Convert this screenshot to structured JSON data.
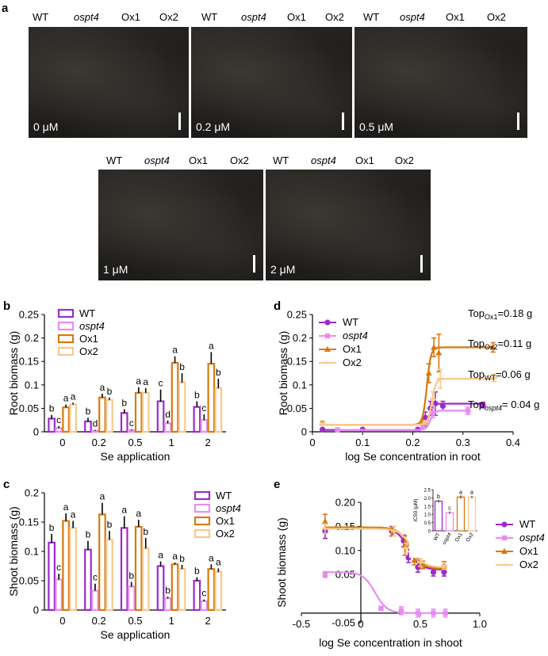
{
  "panel_letters": {
    "a": "a",
    "b": "b",
    "c": "c",
    "d": "d",
    "e": "e"
  },
  "photos": {
    "genotypes": [
      "WT",
      "ospt4",
      "Ox1",
      "Ox2"
    ],
    "panels": [
      {
        "concentration": "0 μM"
      },
      {
        "concentration": "0.2 μM"
      },
      {
        "concentration": "0.5 μM"
      },
      {
        "concentration": "1 μM"
      },
      {
        "concentration": "2 μM"
      }
    ]
  },
  "chart_data": [
    {
      "id": "b",
      "type": "bar",
      "ylabel": "Root biomass  (g)",
      "xlabel": "Se application",
      "categories": [
        "0",
        "0.2",
        "0.5",
        "1",
        "2"
      ],
      "ylim": [
        0,
        0.25
      ],
      "yticks": [
        "0",
        "0.05",
        "0.1",
        "0.15",
        "0.2",
        "0.25"
      ],
      "legend": [
        "WT",
        "ospt4",
        "Ox1",
        "Ox2"
      ],
      "series": [
        {
          "name": "WT",
          "color": "#9c2bc9",
          "values": [
            0.028,
            0.022,
            0.04,
            0.065,
            0.053
          ],
          "err": [
            0.008,
            0.008,
            0.008,
            0.025,
            0.012
          ],
          "letters": [
            "b",
            "b",
            "b",
            "c",
            "b"
          ]
        },
        {
          "name": "ospt4",
          "color": "#e88cf2",
          "values": [
            0.008,
            0.002,
            0.003,
            0.018,
            0.025
          ],
          "err": [
            0.004,
            0.002,
            0.002,
            0.006,
            0.012
          ],
          "letters": [
            "c",
            "d",
            "c",
            "d",
            "c"
          ]
        },
        {
          "name": "Ox1",
          "color": "#d9780f",
          "values": [
            0.052,
            0.073,
            0.083,
            0.147,
            0.145
          ],
          "err": [
            0.006,
            0.008,
            0.012,
            0.014,
            0.025
          ],
          "letters": [
            "a",
            "a",
            "a",
            "a",
            "a"
          ]
        },
        {
          "name": "Ox2",
          "color": "#f6c98c",
          "values": [
            0.058,
            0.068,
            0.083,
            0.105,
            0.093
          ],
          "err": [
            0.004,
            0.005,
            0.01,
            0.02,
            0.02
          ],
          "letters": [
            "a",
            "b",
            "a",
            "b",
            "b"
          ]
        }
      ]
    },
    {
      "id": "c",
      "type": "bar",
      "ylabel": "Shoot biomass  (g)",
      "xlabel": "Se application",
      "categories": [
        "0",
        "0.2",
        "0.5",
        "1",
        "2"
      ],
      "ylim": [
        0,
        0.2
      ],
      "yticks": [
        "0",
        "0.05",
        "0.1",
        "0.15",
        "0.2"
      ],
      "legend": [
        "WT",
        "ospt4",
        "Ox1",
        "Ox2"
      ],
      "series": [
        {
          "name": "WT",
          "color": "#9c2bc9",
          "values": [
            0.115,
            0.103,
            0.14,
            0.075,
            0.05
          ],
          "err": [
            0.015,
            0.015,
            0.02,
            0.008,
            0.006
          ],
          "letters": [
            "b",
            "b",
            "a",
            "a",
            "b"
          ]
        },
        {
          "name": "ospt4",
          "color": "#e88cf2",
          "values": [
            0.052,
            0.033,
            0.04,
            0.02,
            0.015
          ],
          "err": [
            0.01,
            0.012,
            0.008,
            0.003,
            0.003
          ],
          "letters": [
            "c",
            "c",
            "b",
            "b",
            "c"
          ]
        },
        {
          "name": "Ox1",
          "color": "#d9780f",
          "values": [
            0.152,
            0.163,
            0.142,
            0.078,
            0.07
          ],
          "err": [
            0.013,
            0.02,
            0.012,
            0.003,
            0.008
          ],
          "letters": [
            "a",
            "a",
            "a",
            "a",
            "a"
          ]
        },
        {
          "name": "Ox2",
          "color": "#f6c98c",
          "values": [
            0.14,
            0.12,
            0.105,
            0.07,
            0.065
          ],
          "err": [
            0.012,
            0.015,
            0.018,
            0.007,
            0.006
          ],
          "letters": [
            "a",
            "b",
            "b",
            "b",
            "a"
          ]
        }
      ]
    },
    {
      "id": "d",
      "type": "scatter",
      "ylabel": "Root biomass  (g)",
      "xlabel": "log Se concentration in root",
      "xlim": [
        0,
        0.4
      ],
      "ylim": [
        0,
        0.25
      ],
      "xticks": [
        "0",
        "0.1",
        "0.2",
        "0.3",
        "0.4"
      ],
      "yticks": [
        "0",
        "0.05",
        "0.1",
        "0.15",
        "0.2",
        "0.25"
      ],
      "legend": [
        "WT",
        "ospt4",
        "Ox1",
        "Ox2"
      ],
      "annotations": [
        {
          "pre": "Top",
          "sub": "Ox1",
          "post": "=0.18 g"
        },
        {
          "pre": "Top",
          "sub": "Ox2",
          "post": "=0.11 g"
        },
        {
          "pre": "Top",
          "sub": "WT",
          "post": "=0.06 g"
        },
        {
          "pre": "Top",
          "sub": "ospt4",
          "post": "= 0.04 g"
        }
      ],
      "series": [
        {
          "name": "WT",
          "color": "#9c2bc9",
          "marker": "circle",
          "bottom": 0.004,
          "top": 0.06,
          "mid": 0.232,
          "x": [
            0.02,
            0.1,
            0.21,
            0.225,
            0.235,
            0.245,
            0.26,
            0.34
          ],
          "y": [
            0.005,
            0.005,
            0.005,
            0.03,
            0.05,
            0.06,
            0.055,
            0.057
          ],
          "err": [
            0.002,
            0.002,
            0.002,
            0.012,
            0.015,
            0.025,
            0.01,
            0.006
          ]
        },
        {
          "name": "ospt4",
          "color": "#e88cf2",
          "marker": "square",
          "bottom": 0.004,
          "top": 0.045,
          "mid": 0.235,
          "x": [
            0.05,
            0.22,
            0.24,
            0.31
          ],
          "y": [
            0.004,
            0.01,
            0.04,
            0.045
          ],
          "err": [
            0.002,
            0.004,
            0.01,
            0.008
          ]
        },
        {
          "name": "Ox1",
          "color": "#d9780f",
          "marker": "triangle",
          "bottom": 0.015,
          "top": 0.18,
          "mid": 0.228,
          "x": [
            0.02,
            0.22,
            0.232,
            0.242,
            0.252,
            0.36
          ],
          "y": [
            0.018,
            0.02,
            0.125,
            0.18,
            0.168,
            0.18
          ],
          "err": [
            0.004,
            0.005,
            0.02,
            0.02,
            0.04,
            0.01
          ]
        },
        {
          "name": "Ox2",
          "color": "#f6c98c",
          "marker": "line",
          "bottom": 0.015,
          "top": 0.113,
          "mid": 0.238,
          "x": [
            0.02,
            0.225,
            0.24,
            0.255,
            0.362
          ],
          "y": [
            0.017,
            0.02,
            0.07,
            0.113,
            0.115
          ],
          "err": [
            0.003,
            0.004,
            0.015,
            0.02,
            0.008
          ]
        }
      ]
    },
    {
      "id": "e",
      "type": "scatter",
      "ylabel": "Shoot biomass  (g)",
      "xlabel": "log Se concentration in shoot",
      "xlim": [
        -0.5,
        1.0
      ],
      "ylim": [
        -0.05,
        0.2
      ],
      "xticks": [
        "-0.5",
        "0",
        "0.5",
        "1.0"
      ],
      "ytick_labels": [
        "-0.05",
        "0.05",
        "0.10",
        "0.15",
        "0.20"
      ],
      "ytick_values": [
        -0.05,
        0.05,
        0.1,
        0.15,
        0.2
      ],
      "legend": [
        "WT",
        "ospt4",
        "Ox1",
        "Ox2"
      ],
      "series": [
        {
          "name": "WT",
          "color": "#9c2bc9",
          "marker": "circle",
          "top": 0.147,
          "bottom": 0.06,
          "ic": 0.4,
          "x": [
            -0.3,
            0.26,
            0.36,
            0.4,
            0.48,
            0.61,
            0.7
          ],
          "y": [
            0.14,
            0.14,
            0.12,
            0.085,
            0.065,
            0.055,
            0.055
          ],
          "err": [
            0.015,
            0.01,
            0.012,
            0.01,
            0.01,
            0.008,
            0.008
          ]
        },
        {
          "name": "ospt4",
          "color": "#e88cf2",
          "marker": "square",
          "top": 0.055,
          "bottom": -0.03,
          "ic": 0.12,
          "x": [
            -0.3,
            0.17,
            0.34,
            0.48,
            0.61,
            0.71
          ],
          "y": [
            0.05,
            -0.02,
            -0.025,
            -0.03,
            -0.03,
            -0.03
          ],
          "err": [
            0.006,
            0.004,
            0.008,
            0.008,
            0.008,
            0.008
          ]
        },
        {
          "name": "Ox1",
          "color": "#d9780f",
          "marker": "triangle",
          "top": 0.148,
          "bottom": 0.062,
          "ic": 0.42,
          "x": [
            -0.3,
            0.27,
            0.37,
            0.45,
            0.52,
            0.7
          ],
          "y": [
            0.16,
            0.14,
            0.11,
            0.08,
            0.07,
            0.07
          ],
          "err": [
            0.015,
            0.01,
            0.02,
            0.01,
            0.008,
            0.007
          ]
        },
        {
          "name": "Ox2",
          "color": "#f6c98c",
          "marker": "line",
          "top": 0.145,
          "bottom": 0.065,
          "ic": 0.43,
          "x": [
            -0.3,
            0.28,
            0.38,
            0.5,
            0.7
          ],
          "y": [
            0.145,
            0.14,
            0.105,
            0.075,
            0.068
          ],
          "err": [
            0.01,
            0.01,
            0.01,
            0.008,
            0.007
          ]
        }
      ],
      "inset": {
        "type": "bar",
        "ylabel": "IC50 (μM)",
        "categories": [
          "WT",
          "ospt4",
          "Ox1",
          "Ox2"
        ],
        "values": [
          1.8,
          1.1,
          2.05,
          2.05
        ],
        "err": [
          0.08,
          0.08,
          0.1,
          0.08
        ],
        "letters": [
          "b",
          "c",
          "a",
          "a"
        ],
        "ylim": [
          0,
          2.5
        ],
        "yticks": [
          "0",
          "0.5",
          "1.0",
          "1.5",
          "2.0",
          "2.5"
        ]
      }
    }
  ]
}
